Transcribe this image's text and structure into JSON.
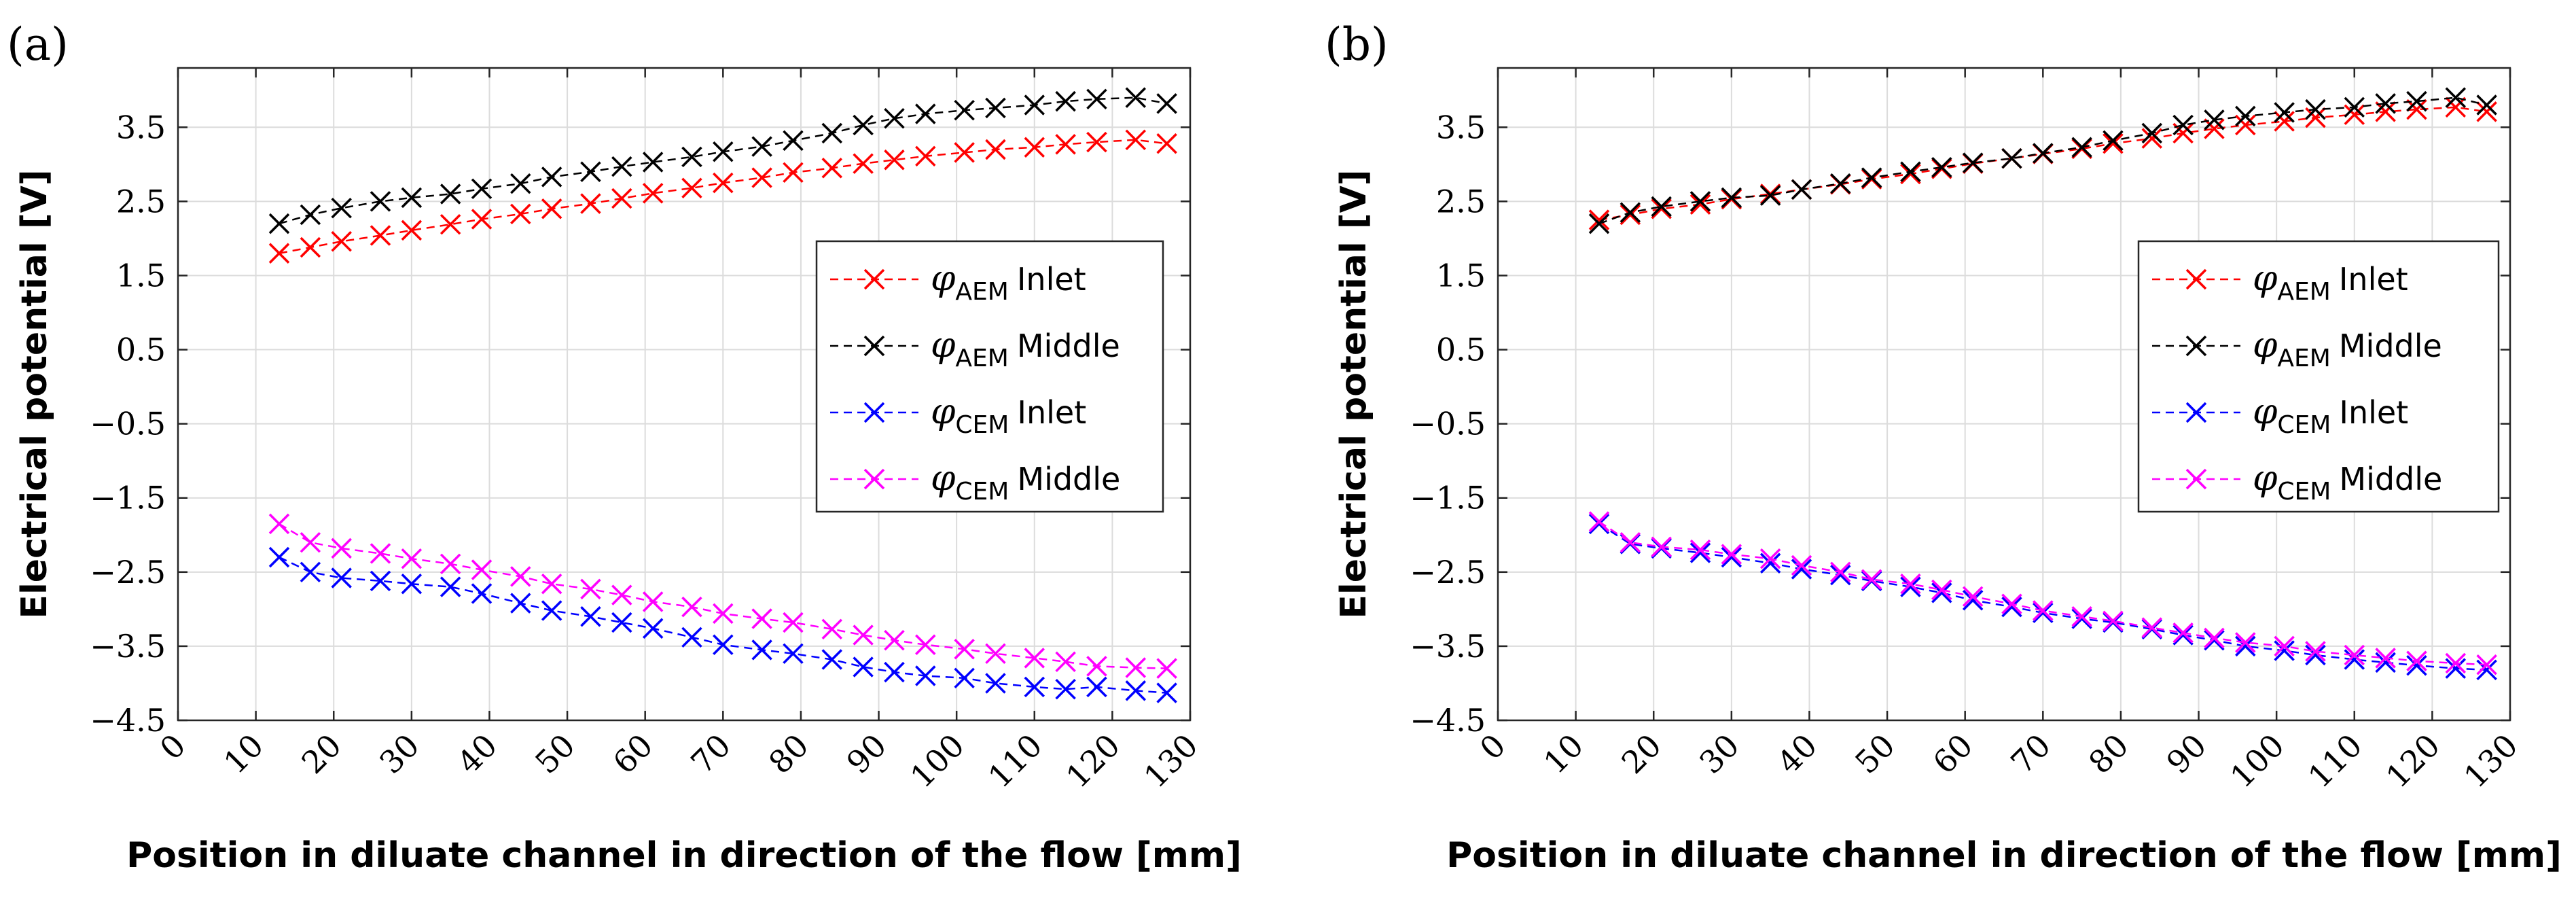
{
  "chart_data": [
    {
      "type": "line",
      "panel_label": "(a)",
      "xlabel": "Position in diluate channel in direction of the flow [mm]",
      "ylabel": "Electrical potential [V]",
      "xlim": [
        0,
        130
      ],
      "ylim": [
        -4.5,
        4.3
      ],
      "xticks": [
        "0",
        "10",
        "20",
        "30",
        "40",
        "50",
        "60",
        "70",
        "80",
        "90",
        "100",
        "110",
        "120",
        "130"
      ],
      "xtick_values": [
        0,
        10,
        20,
        30,
        40,
        50,
        60,
        70,
        80,
        90,
        100,
        110,
        120,
        130
      ],
      "yticks": [
        "3.5",
        "2.5",
        "1.5",
        "0.5",
        "−0.5",
        "−1.5",
        "−2.5",
        "−3.5",
        "−4.5"
      ],
      "ytick_values": [
        3.5,
        2.5,
        1.5,
        0.5,
        -0.5,
        -1.5,
        -2.5,
        -3.5,
        -4.5
      ],
      "grid": true,
      "legend_position": "center-right",
      "x": [
        13,
        17,
        21,
        26,
        30,
        35,
        39,
        44,
        48,
        53,
        57,
        61,
        66,
        70,
        75,
        79,
        84,
        88,
        92,
        96,
        101,
        105,
        110,
        114,
        118,
        123,
        127
      ],
      "series": [
        {
          "name": "φAEM Inlet",
          "symbol": "φ",
          "sub": "AEM",
          "label": "Inlet",
          "color": "#ff0000",
          "values": [
            1.8,
            1.88,
            1.96,
            2.04,
            2.11,
            2.19,
            2.26,
            2.33,
            2.4,
            2.47,
            2.54,
            2.61,
            2.68,
            2.75,
            2.82,
            2.89,
            2.95,
            3.01,
            3.06,
            3.11,
            3.16,
            3.2,
            3.23,
            3.27,
            3.3,
            3.33,
            3.28
          ]
        },
        {
          "name": "φAEM Middle",
          "symbol": "φ",
          "sub": "AEM",
          "label": "Middle",
          "color": "#000000",
          "values": [
            2.2,
            2.32,
            2.41,
            2.5,
            2.55,
            2.6,
            2.67,
            2.74,
            2.83,
            2.9,
            2.97,
            3.03,
            3.1,
            3.17,
            3.24,
            3.32,
            3.42,
            3.53,
            3.62,
            3.68,
            3.73,
            3.76,
            3.8,
            3.85,
            3.88,
            3.9,
            3.82
          ]
        },
        {
          "name": "φCEM Inlet",
          "symbol": "φ",
          "sub": "CEM",
          "label": "Inlet",
          "color": "#0000ff",
          "values": [
            -2.3,
            -2.5,
            -2.58,
            -2.62,
            -2.66,
            -2.7,
            -2.79,
            -2.92,
            -3.02,
            -3.1,
            -3.18,
            -3.26,
            -3.38,
            -3.48,
            -3.55,
            -3.6,
            -3.68,
            -3.78,
            -3.85,
            -3.9,
            -3.93,
            -4.0,
            -4.05,
            -4.08,
            -4.05,
            -4.1,
            -4.13
          ]
        },
        {
          "name": "φCEM Middle",
          "symbol": "φ",
          "sub": "CEM",
          "label": "Middle",
          "color": "#ff00ff",
          "values": [
            -1.85,
            -2.1,
            -2.18,
            -2.25,
            -2.32,
            -2.39,
            -2.47,
            -2.56,
            -2.66,
            -2.73,
            -2.81,
            -2.9,
            -2.97,
            -3.06,
            -3.13,
            -3.18,
            -3.27,
            -3.35,
            -3.42,
            -3.48,
            -3.54,
            -3.6,
            -3.66,
            -3.71,
            -3.77,
            -3.79,
            -3.8
          ]
        }
      ]
    },
    {
      "type": "line",
      "panel_label": "(b)",
      "xlabel": "Position in diluate channel in direction of the flow [mm]",
      "ylabel": "Electrical potential [V]",
      "xlim": [
        0,
        130
      ],
      "ylim": [
        -4.5,
        4.3
      ],
      "xticks": [
        "0",
        "10",
        "20",
        "30",
        "40",
        "50",
        "60",
        "70",
        "80",
        "90",
        "100",
        "110",
        "120",
        "130"
      ],
      "xtick_values": [
        0,
        10,
        20,
        30,
        40,
        50,
        60,
        70,
        80,
        90,
        100,
        110,
        120,
        130
      ],
      "yticks": [
        "3.5",
        "2.5",
        "1.5",
        "0.5",
        "−0.5",
        "−1.5",
        "−2.5",
        "−3.5",
        "−4.5"
      ],
      "ytick_values": [
        3.5,
        2.5,
        1.5,
        0.5,
        -0.5,
        -1.5,
        -2.5,
        -3.5,
        -4.5
      ],
      "grid": true,
      "legend_position": "center-right",
      "x": [
        13,
        17,
        21,
        26,
        30,
        35,
        39,
        44,
        48,
        53,
        57,
        61,
        66,
        70,
        75,
        79,
        84,
        88,
        92,
        96,
        101,
        105,
        110,
        114,
        118,
        123,
        127
      ],
      "series": [
        {
          "name": "φAEM Inlet",
          "symbol": "φ",
          "sub": "AEM",
          "label": "Inlet",
          "color": "#ff0000",
          "values": [
            2.25,
            2.32,
            2.4,
            2.46,
            2.53,
            2.6,
            2.66,
            2.73,
            2.8,
            2.87,
            2.94,
            3.01,
            3.08,
            3.14,
            3.21,
            3.28,
            3.35,
            3.42,
            3.48,
            3.53,
            3.58,
            3.63,
            3.67,
            3.71,
            3.74,
            3.77,
            3.71
          ]
        },
        {
          "name": "φAEM Middle",
          "symbol": "φ",
          "sub": "AEM",
          "label": "Middle",
          "color": "#000000",
          "values": [
            2.2,
            2.35,
            2.43,
            2.5,
            2.55,
            2.58,
            2.66,
            2.74,
            2.82,
            2.9,
            2.96,
            3.02,
            3.08,
            3.15,
            3.23,
            3.32,
            3.42,
            3.53,
            3.6,
            3.65,
            3.7,
            3.74,
            3.77,
            3.82,
            3.85,
            3.9,
            3.8
          ]
        },
        {
          "name": "φCEM Inlet",
          "symbol": "φ",
          "sub": "CEM",
          "label": "Inlet",
          "color": "#0000ff",
          "values": [
            -1.85,
            -2.12,
            -2.18,
            -2.24,
            -2.3,
            -2.38,
            -2.46,
            -2.54,
            -2.62,
            -2.7,
            -2.78,
            -2.88,
            -2.97,
            -3.05,
            -3.13,
            -3.18,
            -3.27,
            -3.35,
            -3.42,
            -3.5,
            -3.56,
            -3.62,
            -3.68,
            -3.72,
            -3.76,
            -3.8,
            -3.82
          ]
        },
        {
          "name": "φCEM Middle",
          "symbol": "φ",
          "sub": "CEM",
          "label": "Middle",
          "color": "#ff00ff",
          "values": [
            -1.82,
            -2.1,
            -2.16,
            -2.2,
            -2.26,
            -2.32,
            -2.41,
            -2.5,
            -2.6,
            -2.66,
            -2.74,
            -2.83,
            -2.93,
            -3.02,
            -3.1,
            -3.16,
            -3.25,
            -3.32,
            -3.39,
            -3.45,
            -3.5,
            -3.57,
            -3.62,
            -3.66,
            -3.7,
            -3.73,
            -3.75
          ]
        }
      ]
    }
  ]
}
